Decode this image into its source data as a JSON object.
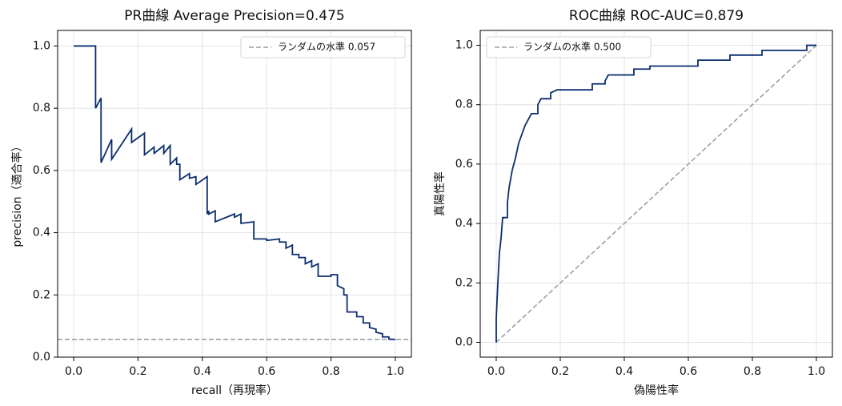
{
  "chart_data": [
    {
      "type": "line",
      "title": "PR曲線  Average Precision=0.475",
      "xlabel": "recall（再現率）",
      "ylabel": "precision（適合率）",
      "xlim": [
        -0.05,
        1.05
      ],
      "ylim": [
        0,
        1.05
      ],
      "xticks": [
        {
          "value": 0,
          "label": "0.0"
        },
        0.2,
        0.4,
        0.6,
        0.8,
        {
          "value": 1,
          "label": "1.0"
        }
      ],
      "yticks": [
        {
          "value": 0,
          "label": "0.0"
        },
        0.2,
        0.4,
        0.6,
        0.8,
        {
          "value": 1,
          "label": "1.0"
        }
      ],
      "grid": true,
      "legend": "upper right",
      "series": [
        {
          "color": "#0a2d6e",
          "x": [
            0,
            0.068,
            0.068,
            0.085,
            0.085,
            0.118,
            0.118,
            0.18,
            0.18,
            0.22,
            0.22,
            0.25,
            0.25,
            0.28,
            0.28,
            0.3,
            0.3,
            0.32,
            0.32,
            0.33,
            0.33,
            0.36,
            0.36,
            0.38,
            0.38,
            0.415,
            0.415,
            0.42,
            0.42,
            0.44,
            0.44,
            0.5,
            0.5,
            0.52,
            0.52,
            0.56,
            0.56,
            0.6,
            0.6,
            0.64,
            0.64,
            0.66,
            0.66,
            0.68,
            0.68,
            0.7,
            0.7,
            0.72,
            0.72,
            0.74,
            0.74,
            0.76,
            0.76,
            0.8,
            0.8,
            0.82,
            0.82,
            0.84,
            0.84,
            0.85,
            0.85,
            0.88,
            0.88,
            0.9,
            0.9,
            0.92,
            0.92,
            0.94,
            0.94,
            0.96,
            0.96,
            0.98,
            0.98,
            1.0
          ],
          "values": [
            1.0,
            1.0,
            0.8,
            0.833,
            0.625,
            0.7,
            0.636,
            0.733,
            0.69,
            0.72,
            0.65,
            0.675,
            0.655,
            0.68,
            0.655,
            0.68,
            0.62,
            0.64,
            0.62,
            0.62,
            0.57,
            0.59,
            0.575,
            0.58,
            0.555,
            0.58,
            0.46,
            0.47,
            0.46,
            0.47,
            0.435,
            0.46,
            0.45,
            0.46,
            0.43,
            0.435,
            0.38,
            0.38,
            0.375,
            0.38,
            0.37,
            0.37,
            0.35,
            0.36,
            0.33,
            0.33,
            0.32,
            0.32,
            0.3,
            0.31,
            0.29,
            0.3,
            0.26,
            0.26,
            0.265,
            0.265,
            0.23,
            0.22,
            0.2,
            0.2,
            0.145,
            0.145,
            0.13,
            0.13,
            0.11,
            0.11,
            0.095,
            0.09,
            0.08,
            0.075,
            0.065,
            0.065,
            0.058,
            0.057
          ]
        }
      ],
      "reference_line": {
        "name": "ランダムの水準 0.057",
        "color": "#9aa0ac",
        "y": 0.057
      }
    },
    {
      "type": "line",
      "title": "ROC曲線  ROC-AUC=0.879",
      "xlabel": "偽陽性率",
      "ylabel": "真陽性率",
      "xlim": [
        -0.05,
        1.05
      ],
      "ylim": [
        -0.05,
        1.05
      ],
      "xticks": [
        {
          "value": 0,
          "label": "0.0"
        },
        0.2,
        0.4,
        0.6,
        0.8,
        {
          "value": 1,
          "label": "1.0"
        }
      ],
      "yticks": [
        {
          "value": 0,
          "label": "0.0"
        },
        0.2,
        0.4,
        0.6,
        0.8,
        {
          "value": 1,
          "label": "1.0"
        }
      ],
      "grid": true,
      "legend": "upper left",
      "series": [
        {
          "color": "#0a2d6e",
          "x": [
            0,
            0,
            0.005,
            0.01,
            0.015,
            0.02,
            0.035,
            0.035,
            0.04,
            0.05,
            0.06,
            0.07,
            0.08,
            0.09,
            0.1,
            0.11,
            0.13,
            0.13,
            0.14,
            0.17,
            0.17,
            0.19,
            0.3,
            0.3,
            0.34,
            0.34,
            0.35,
            0.43,
            0.43,
            0.48,
            0.48,
            0.63,
            0.63,
            0.73,
            0.73,
            0.83,
            0.83,
            0.97,
            0.97,
            1.0
          ],
          "values": [
            0,
            0.08,
            0.2,
            0.3,
            0.35,
            0.42,
            0.42,
            0.47,
            0.52,
            0.58,
            0.62,
            0.67,
            0.7,
            0.73,
            0.75,
            0.77,
            0.77,
            0.8,
            0.82,
            0.82,
            0.84,
            0.85,
            0.85,
            0.87,
            0.87,
            0.88,
            0.9,
            0.9,
            0.92,
            0.92,
            0.93,
            0.93,
            0.95,
            0.95,
            0.967,
            0.967,
            0.983,
            0.983,
            1.0,
            1.0
          ]
        }
      ],
      "reference_line": {
        "name": "ランダムの水準 0.500",
        "color": "#9aa0ac",
        "x": [
          0,
          1
        ],
        "y": [
          0,
          1
        ]
      }
    }
  ]
}
